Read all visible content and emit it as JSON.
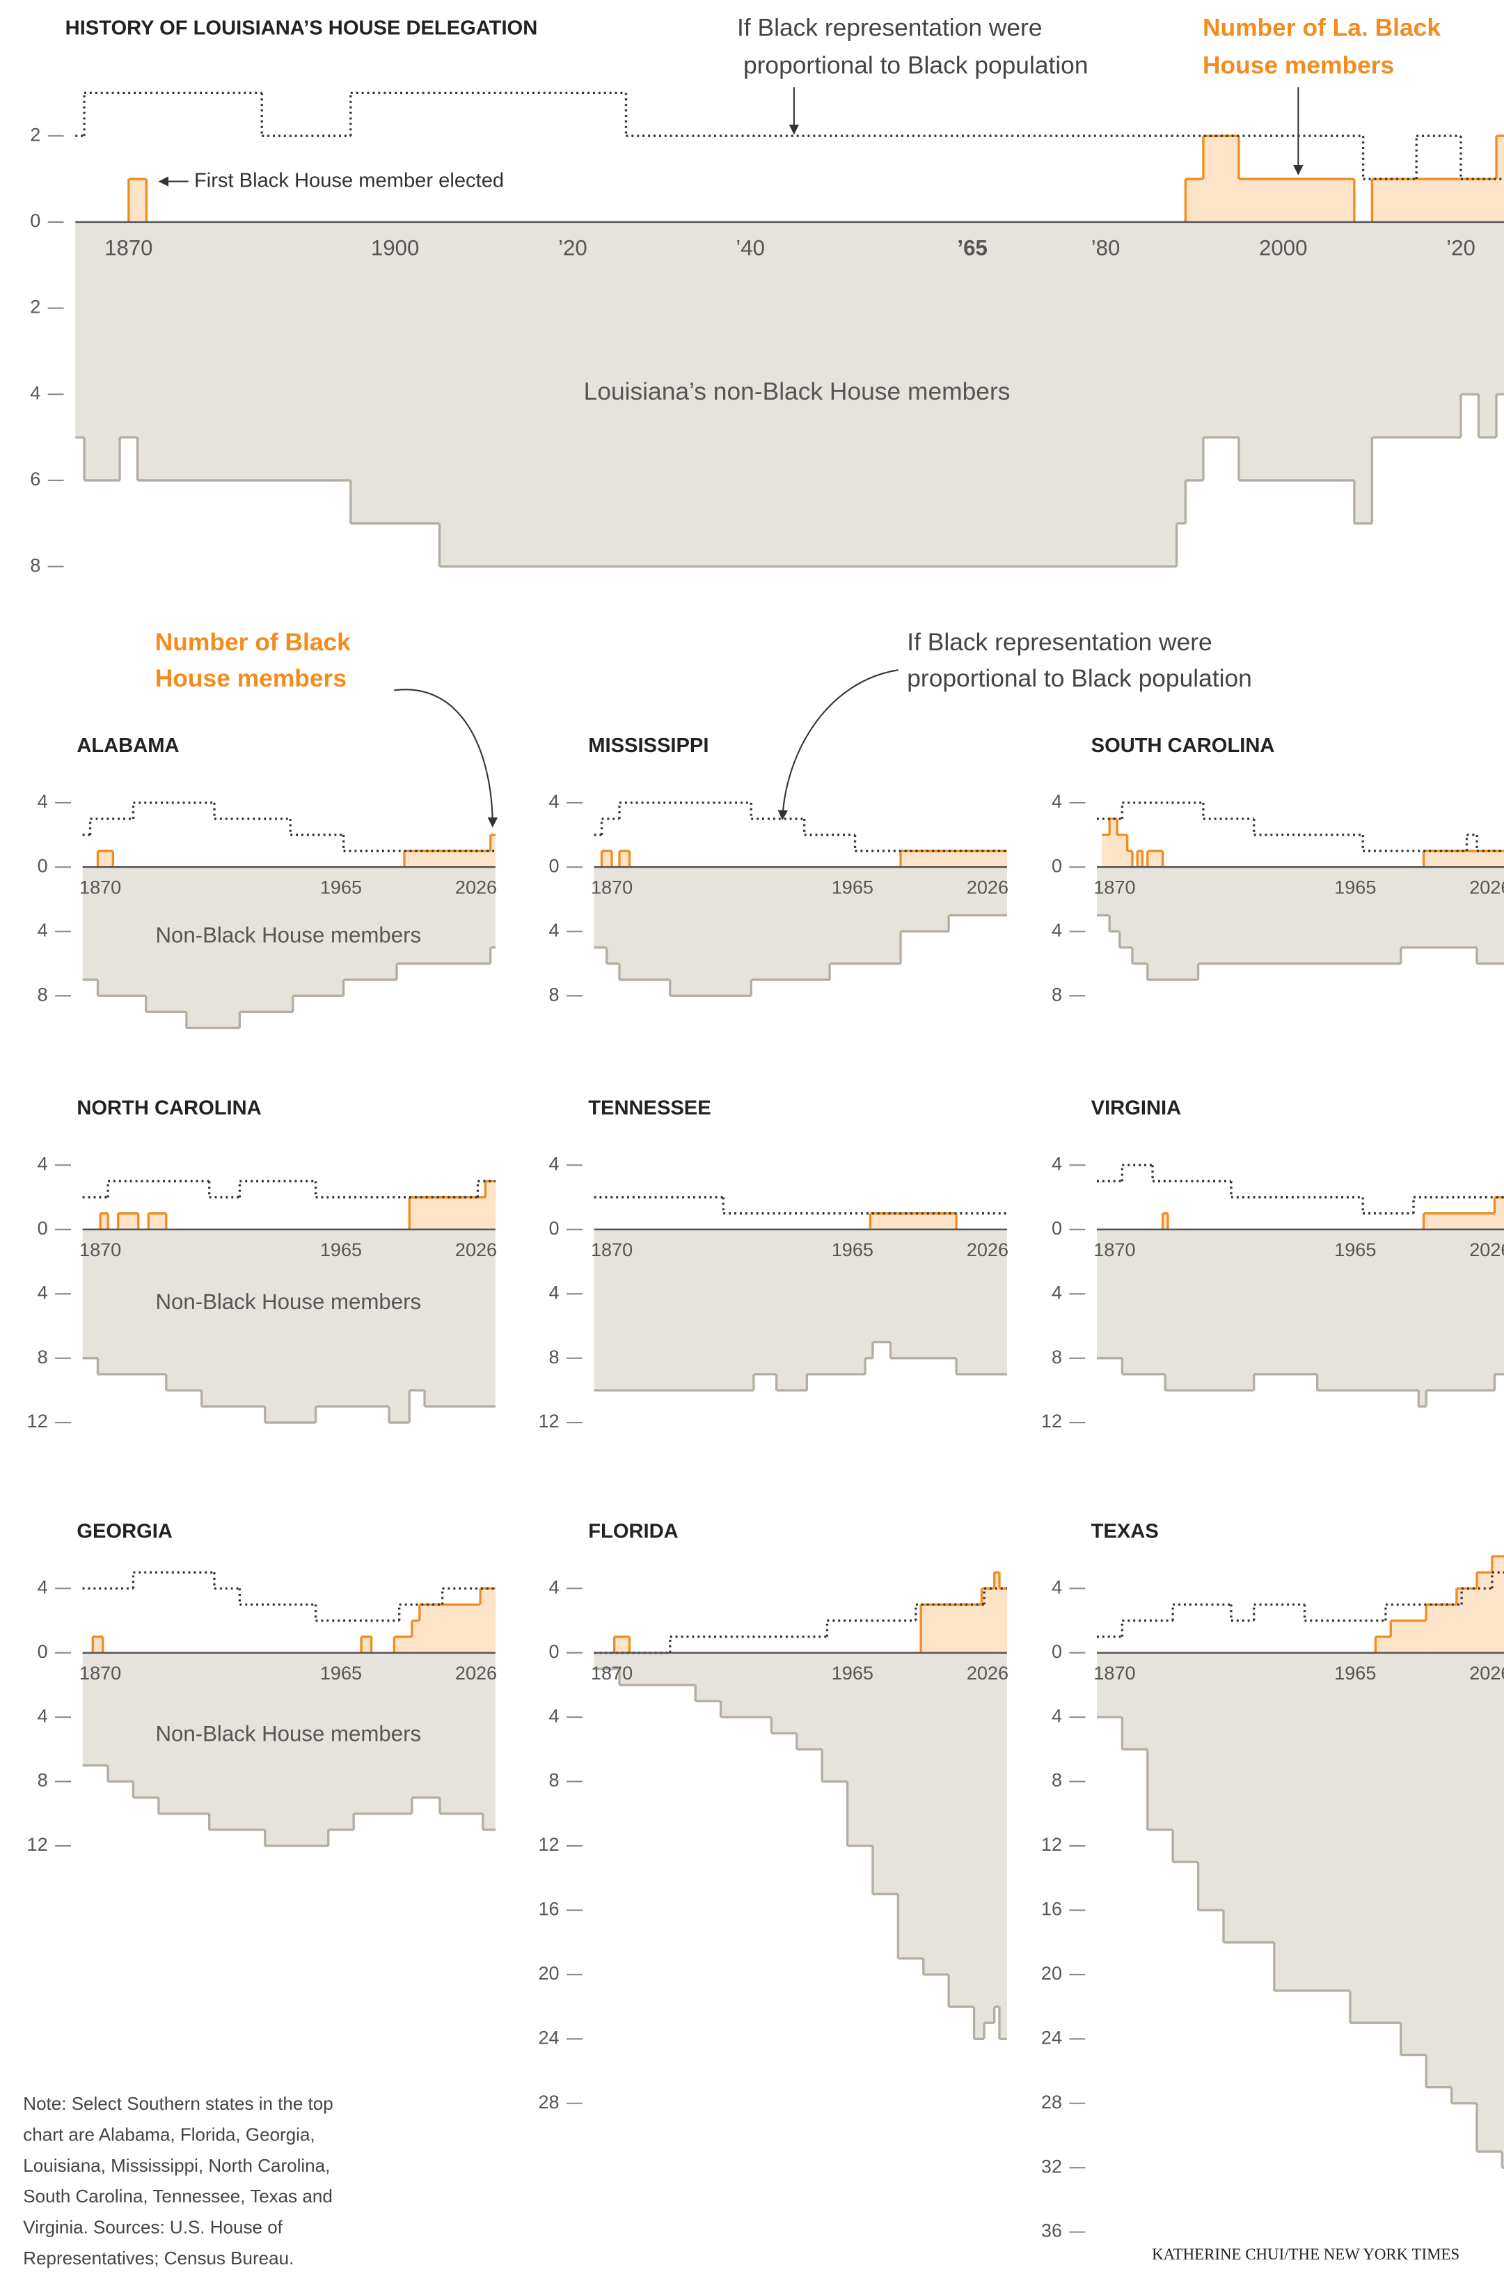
{
  "chart_data": [
    {
      "type": "step",
      "title": "HISTORY OF LOUISIANA’S HOUSE DELEGATION",
      "xlim": [
        1864,
        2026
      ],
      "xticks": [
        1870,
        1900,
        {
          "value": 1920,
          "label": "’20"
        },
        {
          "value": 1940,
          "label": "’40"
        },
        {
          "value": 1965,
          "label": "’65",
          "bold": true
        },
        {
          "value": 1980,
          "label": "’80"
        },
        2000,
        {
          "value": 2020,
          "label": "’20"
        }
      ],
      "ylim": [
        0,
        3
      ],
      "yticks": [
        0,
        2
      ],
      "y2lim": [
        0,
        8.5
      ],
      "y2ticks": [
        2,
        4,
        6,
        8
      ],
      "series": [
        {
          "axis": "y2",
          "color": "#b3ada2",
          "fill": "#e6e3dc",
          "x": [
            1864,
            1865,
            1869,
            1871,
            1895,
            1905,
            1988,
            1989,
            1991,
            1995,
            2008,
            2010,
            2020,
            2022,
            2024
          ],
          "values": [
            5,
            6,
            5,
            6,
            7,
            8,
            7,
            6,
            5,
            6,
            7,
            5,
            4,
            5,
            4
          ]
        },
        {
          "color": "#f28c1e",
          "fill": "#fde4c8",
          "x": [
            1864,
            1870,
            1872,
            1989,
            1991,
            1995,
            2008,
            2010,
            2024
          ],
          "values": [
            0,
            1,
            0,
            1,
            2,
            1,
            0,
            1,
            2
          ]
        },
        {
          "color": "#333333",
          "style": "dotted",
          "x": [
            1864,
            1865,
            1885,
            1895,
            1926,
            2009,
            2015,
            2020
          ],
          "values": [
            2,
            3,
            2,
            3,
            2,
            1,
            2,
            1
          ]
        }
      ],
      "annotations": [
        [
          "If Black representation were",
          "proportional to Black population"
        ],
        [
          "Number of La. Black",
          "House members"
        ],
        "First Black House member elected",
        "Louisiana’s non-Black House members"
      ]
    },
    {
      "type": "step",
      "title": "ALABAMA",
      "xlim": [
        1863,
        2026
      ],
      "xticks": [
        1870,
        1965,
        2026
      ],
      "ylim": [
        0,
        5
      ],
      "yticks": [
        0,
        4
      ],
      "y2lim": [
        0,
        10
      ],
      "y2ticks": [
        4,
        8
      ],
      "series": [
        {
          "axis": "y2",
          "color": "#b3ada2",
          "fill": "#e6e3dc",
          "x": [
            1863,
            1869,
            1888,
            1904,
            1925,
            1946,
            1966,
            1987,
            2024
          ],
          "values": [
            7,
            8,
            9,
            10,
            9,
            8,
            7,
            6,
            5
          ]
        },
        {
          "color": "#f28c1e",
          "fill": "#fde4c8",
          "x": [
            1863,
            1869,
            1875,
            1990,
            2024
          ],
          "values": [
            0,
            1,
            0,
            1,
            2
          ]
        },
        {
          "color": "#333333",
          "style": "dotted",
          "x": [
            1863,
            1866,
            1883,
            1915,
            1945,
            1966
          ],
          "values": [
            2,
            3,
            4,
            3,
            2,
            1
          ]
        }
      ],
      "annotations": [
        "Non-Black House members"
      ]
    },
    {
      "type": "step",
      "title": "MISSISSIPPI",
      "xlim": [
        1863,
        2026
      ],
      "xticks": [
        1870,
        1965,
        2026
      ],
      "ylim": [
        0,
        5
      ],
      "yticks": [
        0,
        4
      ],
      "y2lim": [
        0,
        9
      ],
      "y2ticks": [
        4,
        8
      ],
      "series": [
        {
          "axis": "y2",
          "color": "#b3ada2",
          "fill": "#e6e3dc",
          "x": [
            1863,
            1868,
            1873,
            1893,
            1925,
            1956,
            1984,
            2003
          ],
          "values": [
            5,
            6,
            7,
            8,
            7,
            6,
            4,
            3
          ]
        },
        {
          "color": "#f28c1e",
          "fill": "#fde4c8",
          "x": [
            1863,
            1866,
            1870,
            1873,
            1877,
            1984
          ],
          "values": [
            0,
            1,
            0,
            1,
            0,
            1
          ]
        },
        {
          "color": "#333333",
          "style": "dotted",
          "x": [
            1863,
            1866,
            1873,
            1925,
            1946,
            1966
          ],
          "values": [
            2,
            3,
            4,
            3,
            2,
            1
          ]
        }
      ]
    },
    {
      "type": "step",
      "title": "SOUTH CAROLINA",
      "xlim": [
        1863,
        2026
      ],
      "xticks": [
        1870,
        1965,
        2026
      ],
      "ylim": [
        0,
        5
      ],
      "yticks": [
        0,
        4
      ],
      "y2lim": [
        0,
        9
      ],
      "y2ticks": [
        4,
        8
      ],
      "series": [
        {
          "axis": "y2",
          "color": "#b3ada2",
          "fill": "#e6e3dc",
          "x": [
            1863,
            1868,
            1872,
            1877,
            1883,
            1903,
            1983,
            2013
          ],
          "values": [
            3,
            4,
            5,
            6,
            7,
            6,
            5,
            6
          ]
        },
        {
          "color": "#f28c1e",
          "fill": "#fde4c8",
          "x": [
            1865,
            1868,
            1871,
            1875,
            1877,
            1879,
            1881,
            1883,
            1889,
            1992
          ],
          "values": [
            2,
            3,
            2,
            1,
            0,
            1,
            0,
            1,
            0,
            1
          ]
        },
        {
          "color": "#333333",
          "style": "dotted",
          "x": [
            1863,
            1873,
            1905,
            1925,
            1968,
            2009,
            2013
          ],
          "values": [
            3,
            4,
            3,
            2,
            1,
            2,
            1
          ]
        }
      ]
    },
    {
      "type": "step",
      "title": "NORTH CAROLINA",
      "xlim": [
        1863,
        2026
      ],
      "xticks": [
        1870,
        1965,
        2026
      ],
      "ylim": [
        0,
        5
      ],
      "yticks": [
        0,
        4
      ],
      "y2lim": [
        0,
        14
      ],
      "y2ticks": [
        4,
        8,
        12
      ],
      "series": [
        {
          "axis": "y2",
          "color": "#b3ada2",
          "fill": "#e6e3dc",
          "x": [
            1863,
            1869,
            1896,
            1910,
            1935,
            1955,
            1984,
            1992,
            1998,
            2022
          ],
          "values": [
            8,
            9,
            10,
            11,
            12,
            11,
            12,
            10,
            11,
            11
          ]
        },
        {
          "color": "#f28c1e",
          "fill": "#fde4c8",
          "x": [
            1863,
            1870,
            1873,
            1877,
            1885,
            1889,
            1896,
            1992,
            2022
          ],
          "values": [
            0,
            1,
            0,
            1,
            0,
            1,
            0,
            2,
            3
          ]
        },
        {
          "color": "#333333",
          "style": "dotted",
          "x": [
            1863,
            1873,
            1913,
            1925,
            1955,
            2019
          ],
          "values": [
            2,
            3,
            2,
            3,
            2,
            3
          ]
        }
      ],
      "annotations": [
        "Non-Black House members"
      ]
    },
    {
      "type": "step",
      "title": "TENNESSEE",
      "xlim": [
        1863,
        2026
      ],
      "xticks": [
        1870,
        1965,
        2026
      ],
      "ylim": [
        0,
        5
      ],
      "yticks": [
        0,
        4
      ],
      "y2lim": [
        0,
        12
      ],
      "y2ticks": [
        4,
        8,
        12
      ],
      "series": [
        {
          "axis": "y2",
          "color": "#b3ada2",
          "fill": "#e6e3dc",
          "x": [
            1863,
            1926,
            1935,
            1947,
            1970,
            1973,
            1980,
            2006
          ],
          "values": [
            10,
            9,
            10,
            9,
            8,
            7,
            8,
            9
          ]
        },
        {
          "color": "#f28c1e",
          "fill": "#fde4c8",
          "x": [
            1863,
            1972,
            2006
          ],
          "values": [
            0,
            1,
            0
          ]
        },
        {
          "color": "#333333",
          "style": "dotted",
          "x": [
            1863,
            1914
          ],
          "values": [
            2,
            1
          ]
        }
      ]
    },
    {
      "type": "step",
      "title": "VIRGINIA",
      "xlim": [
        1863,
        2026
      ],
      "xticks": [
        1870,
        1965,
        2026
      ],
      "ylim": [
        0,
        5
      ],
      "yticks": [
        0,
        4
      ],
      "y2lim": [
        0,
        12
      ],
      "y2ticks": [
        4,
        8,
        12
      ],
      "series": [
        {
          "axis": "y2",
          "color": "#b3ada2",
          "fill": "#e6e3dc",
          "x": [
            1863,
            1873,
            1890,
            1925,
            1950,
            1990,
            1993,
            2020
          ],
          "values": [
            8,
            9,
            10,
            9,
            10,
            11,
            10,
            9
          ]
        },
        {
          "color": "#f28c1e",
          "fill": "#fde4c8",
          "x": [
            1863,
            1889,
            1891,
            1992,
            2020
          ],
          "values": [
            0,
            1,
            0,
            1,
            2
          ]
        },
        {
          "color": "#333333",
          "style": "dotted",
          "x": [
            1863,
            1873,
            1885,
            1916,
            1968,
            1988
          ],
          "values": [
            3,
            4,
            3,
            2,
            1,
            2
          ]
        }
      ]
    },
    {
      "type": "step",
      "title": "GEORGIA",
      "xlim": [
        1863,
        2026
      ],
      "xticks": [
        1870,
        1965,
        2026
      ],
      "ylim": [
        0,
        5
      ],
      "yticks": [
        0,
        4
      ],
      "y2lim": [
        0,
        14
      ],
      "y2ticks": [
        4,
        8,
        12
      ],
      "series": [
        {
          "axis": "y2",
          "color": "#b3ada2",
          "fill": "#e6e3dc",
          "x": [
            1863,
            1873,
            1883,
            1893,
            1913,
            1935,
            1960,
            1970,
            1993,
            2004,
            2021
          ],
          "values": [
            7,
            8,
            9,
            10,
            11,
            12,
            11,
            10,
            9,
            10,
            11
          ]
        },
        {
          "color": "#f28c1e",
          "fill": "#fde4c8",
          "x": [
            1863,
            1867,
            1871,
            1973,
            1977,
            1986,
            1993,
            1996,
            2020
          ],
          "values": [
            0,
            1,
            0,
            1,
            0,
            1,
            2,
            3,
            4
          ]
        },
        {
          "color": "#333333",
          "style": "dotted",
          "x": [
            1863,
            1883,
            1915,
            1925,
            1955,
            1988,
            2005
          ],
          "values": [
            4,
            5,
            4,
            3,
            2,
            3,
            4
          ]
        }
      ],
      "annotations": [
        "Non-Black House members"
      ]
    },
    {
      "type": "step",
      "title": "FLORIDA",
      "xlim": [
        1863,
        2026
      ],
      "xticks": [
        1870,
        1965,
        2026
      ],
      "ylim": [
        0,
        5
      ],
      "yticks": [
        0,
        4
      ],
      "y2lim": [
        0,
        29
      ],
      "y2ticks": [
        4,
        8,
        12,
        16,
        20,
        24,
        28
      ],
      "series": [
        {
          "axis": "y2",
          "color": "#b3ada2",
          "fill": "#e6e3dc",
          "x": [
            1863,
            1873,
            1903,
            1913,
            1933,
            1943,
            1953,
            1963,
            1973,
            1983,
            1993,
            2003,
            2013,
            2017,
            2021,
            2023
          ],
          "values": [
            1,
            2,
            3,
            4,
            5,
            6,
            8,
            12,
            15,
            19,
            20,
            22,
            24,
            23,
            22,
            24
          ]
        },
        {
          "color": "#f28c1e",
          "fill": "#fde4c8",
          "x": [
            1863,
            1871,
            1877,
            1992,
            2016,
            2021,
            2023
          ],
          "values": [
            0,
            1,
            0,
            3,
            4,
            5,
            4
          ]
        },
        {
          "color": "#333333",
          "style": "dotted",
          "x": [
            1863,
            1893,
            1955,
            1990,
            2017
          ],
          "values": [
            0,
            1,
            2,
            3,
            4
          ]
        }
      ]
    },
    {
      "type": "step",
      "title": "TEXAS",
      "xlim": [
        1863,
        2026
      ],
      "xticks": [
        1870,
        1965,
        2026
      ],
      "ylim": [
        0,
        5
      ],
      "yticks": [
        0,
        4
      ],
      "y2lim": [
        0,
        37
      ],
      "y2ticks": [
        4,
        8,
        12,
        16,
        20,
        24,
        28,
        32,
        36
      ],
      "series": [
        {
          "axis": "y2",
          "color": "#b3ada2",
          "fill": "#e6e3dc",
          "x": [
            1863,
            1873,
            1883,
            1893,
            1903,
            1913,
            1933,
            1963,
            1973,
            1983,
            1993,
            2003,
            2013,
            2023
          ],
          "values": [
            4,
            6,
            11,
            13,
            16,
            18,
            21,
            23,
            23,
            25,
            27,
            28,
            31,
            32
          ]
        },
        {
          "color": "#f28c1e",
          "fill": "#fde4c8",
          "x": [
            1863,
            1973,
            1979,
            1993,
            2005,
            2013,
            2019
          ],
          "values": [
            0,
            1,
            2,
            3,
            4,
            5,
            6
          ]
        },
        {
          "color": "#333333",
          "style": "dotted",
          "x": [
            1863,
            1873,
            1893,
            1916,
            1925,
            1945,
            1977,
            2007,
            2019
          ],
          "values": [
            1,
            2,
            3,
            2,
            3,
            2,
            3,
            4,
            5
          ]
        }
      ]
    }
  ],
  "callouts": [
    [
      "Number of Black",
      "House members"
    ],
    [
      "If Black representation were",
      "proportional to Black population"
    ]
  ],
  "note": [
    "Note: Select Southern states in the top",
    "chart are Alabama, Florida, Georgia,",
    "Louisiana, Mississippi, North Carolina,",
    "South Carolina, Tennessee, Texas and",
    "Virginia. Sources: U.S. House of",
    "Representatives; Census Bureau."
  ],
  "credit": "KATHERINE CHUI/THE NEW YORK TIMES"
}
